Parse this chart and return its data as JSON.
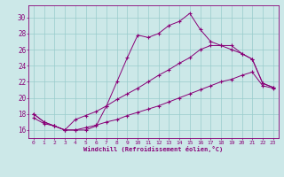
{
  "xlabel": "Windchill (Refroidissement éolien,°C)",
  "bg_color": "#cce8e8",
  "grid_color": "#99cccc",
  "line_color": "#880077",
  "xlim": [
    -0.5,
    23.5
  ],
  "ylim": [
    15.0,
    31.5
  ],
  "yticks": [
    16,
    18,
    20,
    22,
    24,
    26,
    28,
    30
  ],
  "xticks": [
    0,
    1,
    2,
    3,
    4,
    5,
    6,
    7,
    8,
    9,
    10,
    11,
    12,
    13,
    14,
    15,
    16,
    17,
    18,
    19,
    20,
    21,
    22,
    23
  ],
  "series1_x": [
    0,
    1,
    2,
    3,
    4,
    5,
    6,
    7,
    8,
    9,
    10,
    11,
    12,
    13,
    14,
    15,
    16,
    17,
    18,
    19,
    20,
    21,
    22,
    23
  ],
  "series1_y": [
    18,
    17,
    16.5,
    16,
    16,
    16,
    16.5,
    19,
    22,
    25,
    27.8,
    27.5,
    28,
    29,
    29.5,
    30.5,
    28.5,
    27,
    26.5,
    26.5,
    25.5,
    24.8,
    21.8,
    21.3
  ],
  "series2_x": [
    0,
    1,
    2,
    3,
    4,
    5,
    6,
    7,
    8,
    9,
    10,
    11,
    12,
    13,
    14,
    15,
    16,
    17,
    18,
    19,
    20,
    21,
    22,
    23
  ],
  "series2_y": [
    18,
    17,
    16.5,
    16,
    17.3,
    17.8,
    18.3,
    19,
    19.8,
    20.5,
    21.2,
    22,
    22.8,
    23.5,
    24.3,
    25,
    26,
    26.5,
    26.5,
    26,
    25.5,
    24.8,
    21.8,
    21.3
  ],
  "series3_x": [
    0,
    1,
    2,
    3,
    4,
    5,
    6,
    7,
    8,
    9,
    10,
    11,
    12,
    13,
    14,
    15,
    16,
    17,
    18,
    19,
    20,
    21,
    22,
    23
  ],
  "series3_y": [
    17.5,
    16.8,
    16.5,
    16,
    16,
    16.3,
    16.6,
    17.0,
    17.3,
    17.8,
    18.2,
    18.6,
    19.0,
    19.5,
    20.0,
    20.5,
    21.0,
    21.5,
    22.0,
    22.3,
    22.8,
    23.2,
    21.5,
    21.2
  ]
}
